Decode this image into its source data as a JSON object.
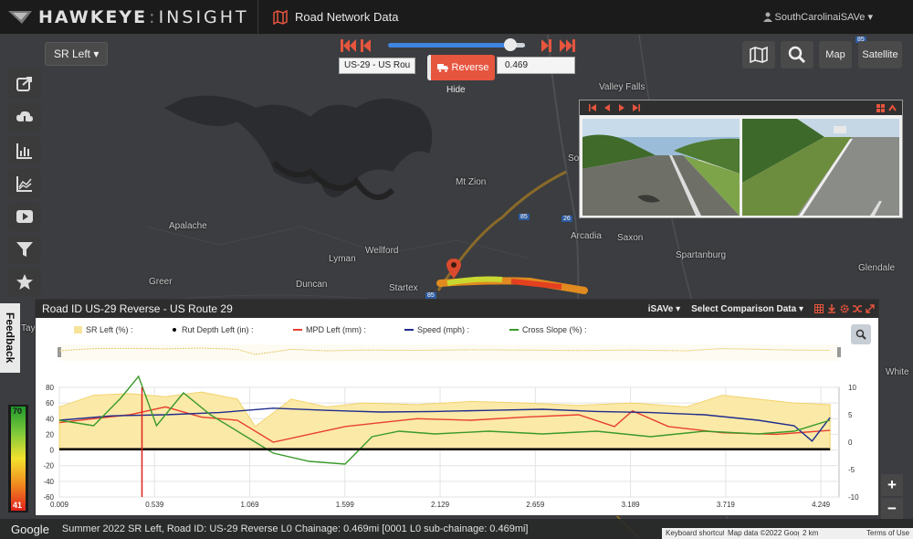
{
  "header": {
    "app_logo_left": "HAWKEYE",
    "app_logo_right": "INSIGHT",
    "section_title": "Road Network Data",
    "user_name": "SouthCarolinaiSAVe"
  },
  "route_selector": {
    "selected": "SR Left"
  },
  "playback": {
    "road_input_value": "US-29 - US Rou",
    "reverse_label": "Reverse",
    "chainage_value": "0.469",
    "hide_label": "Hide",
    "slider_value_fraction": 0.9
  },
  "map_buttons": {
    "map_label": "Map",
    "satellite_label": "Satellite"
  },
  "map_places": [
    "Valley Falls",
    "Mt Zion",
    "Apalache",
    "Arcadia",
    "Saxon",
    "Spartanburg",
    "Wellford",
    "Lyman",
    "Greer",
    "Duncan",
    "Startex",
    "Glendale",
    "White",
    "Tay",
    "So"
  ],
  "route_shields": [
    "85",
    "85",
    "26",
    "85"
  ],
  "feedback_label": "Feedback",
  "panel": {
    "title": "Road ID US-29 Reverse - US Route 29",
    "isave_label": "iSAVe",
    "comparison_label": "Select Comparison Data"
  },
  "legend": [
    {
      "label": "SR Left (%) :",
      "color": "#f7e39a"
    },
    {
      "label": "Rut Depth Left (in) :",
      "color": "#000000"
    },
    {
      "label": "MPD Left (mm) :",
      "color": "#e8402f"
    },
    {
      "label": "Speed (mph) :",
      "color": "#1f2c8c"
    },
    {
      "label": "Cross Slope (%) :",
      "color": "#3a9a2a"
    }
  ],
  "color_scale": {
    "top_label": "70",
    "bottom_label": "41"
  },
  "chart_data": {
    "type": "line",
    "x_ticks": [
      "0.009",
      "0.539",
      "1.069",
      "1.599",
      "2.129",
      "2.659",
      "3.189",
      "3.719",
      "4.249"
    ],
    "y_left_ticks": [
      "80",
      "60",
      "40",
      "20",
      "0",
      "-20",
      "-40",
      "-60"
    ],
    "y_right_ticks": [
      "10",
      "5",
      "0",
      "-5",
      "-10"
    ],
    "xlim": [
      0.009,
      4.35
    ],
    "y_left_lim": [
      -60,
      80
    ],
    "y_right_lim": [
      -10,
      10
    ],
    "cursor_x": 0.469,
    "series": [
      {
        "name": "SR Left (%) :",
        "axis": "left",
        "x": [
          0.009,
          0.2,
          0.4,
          0.6,
          0.8,
          1.0,
          1.1,
          1.3,
          1.5,
          1.7,
          2.0,
          2.3,
          2.6,
          2.9,
          3.2,
          3.5,
          3.7,
          3.9,
          4.1,
          4.3
        ],
        "values": [
          55,
          70,
          72,
          68,
          74,
          65,
          30,
          65,
          55,
          60,
          58,
          62,
          60,
          57,
          60,
          55,
          70,
          65,
          60,
          58
        ]
      },
      {
        "name": "MPD Left (mm) :",
        "axis": "left",
        "x": [
          0.009,
          0.2,
          0.4,
          0.6,
          0.8,
          1.0,
          1.2,
          1.4,
          1.6,
          1.8,
          2.0,
          2.3,
          2.6,
          2.9,
          3.1,
          3.2,
          3.4,
          3.7,
          4.0,
          4.3
        ],
        "values": [
          35,
          40,
          45,
          55,
          42,
          38,
          10,
          20,
          30,
          35,
          40,
          38,
          42,
          45,
          30,
          50,
          30,
          22,
          20,
          25
        ]
      },
      {
        "name": "Speed (mph) :",
        "axis": "right",
        "x": [
          0.009,
          0.3,
          0.6,
          0.9,
          1.2,
          1.5,
          1.8,
          2.1,
          2.4,
          2.7,
          3.0,
          3.3,
          3.6,
          3.9,
          4.1,
          4.2,
          4.3
        ],
        "values": [
          4,
          4.8,
          5.0,
          5.4,
          6.2,
          5.8,
          5.5,
          5.6,
          5.8,
          6.0,
          5.6,
          5.4,
          5.0,
          4.0,
          3.0,
          0.2,
          4.5
        ]
      },
      {
        "name": "Cross Slope (%) :",
        "axis": "right",
        "x": [
          0.009,
          0.2,
          0.35,
          0.45,
          0.55,
          0.7,
          0.85,
          1.0,
          1.2,
          1.4,
          1.6,
          1.75,
          1.9,
          2.1,
          2.4,
          2.7,
          3.0,
          3.3,
          3.6,
          3.9,
          4.1,
          4.3
        ],
        "values": [
          4,
          3,
          8,
          12,
          3,
          9,
          5,
          2,
          -2,
          -3.5,
          -4,
          1,
          2,
          1.5,
          2,
          1.5,
          2,
          1,
          2,
          1.5,
          2,
          4
        ]
      },
      {
        "name": "Rut Depth Left (in) :",
        "axis": "left",
        "x": [
          0.009,
          0.5,
          1.0,
          1.5,
          2.0,
          2.5,
          3.0,
          3.5,
          4.0,
          4.3
        ],
        "values": [
          1,
          1,
          1,
          1,
          1,
          1,
          1,
          1,
          1,
          1
        ]
      }
    ]
  },
  "footer": {
    "google": "Google",
    "status": "Summer 2022 SR Left, Road ID: US-29 Reverse L0 Chainage: 0.469mi [0001 L0 sub-chainage: 0.469mi]",
    "shortcuts": "Keyboard shortcuts",
    "map_data": "Map data ©2022 Google",
    "scale": "2 km",
    "terms": "Terms of Use"
  }
}
